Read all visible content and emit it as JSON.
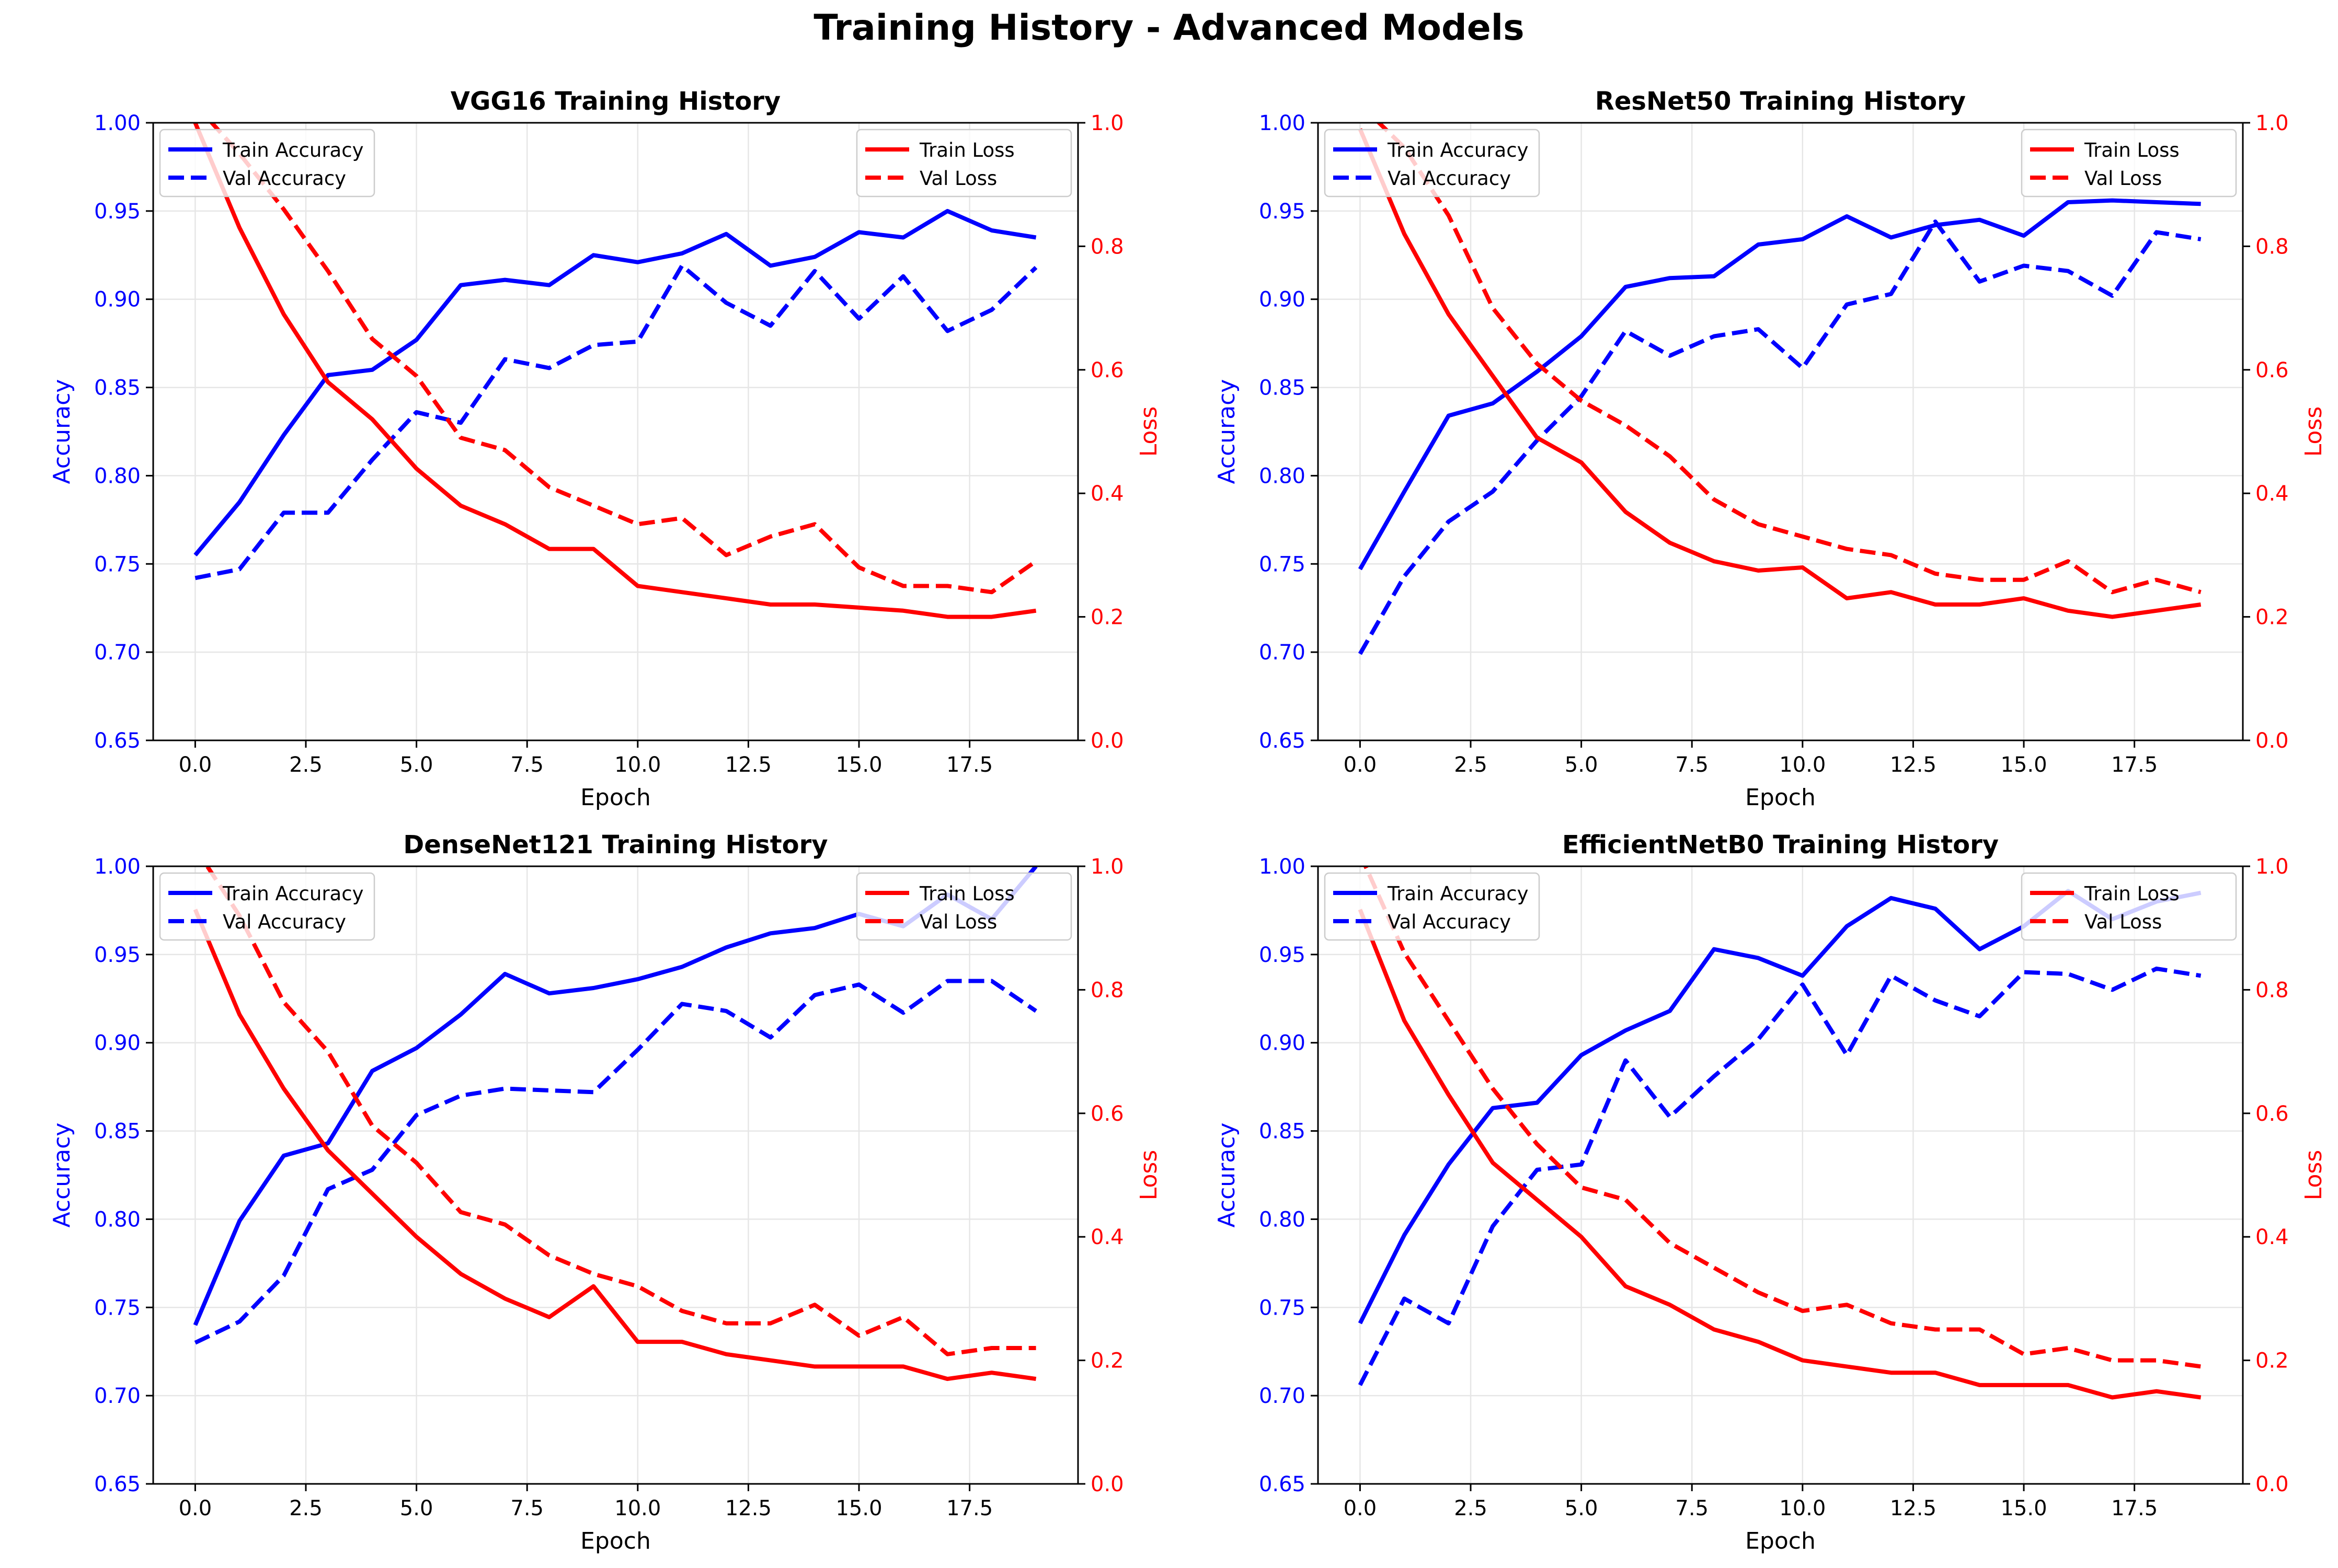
{
  "figure": {
    "suptitle": "Training History - Advanced Models",
    "colors": {
      "accuracy": "#0000ff",
      "loss": "#ff0000",
      "grid": "#e6e6e6",
      "axis": "#000000"
    }
  },
  "chart_data": [
    {
      "type": "line",
      "title": "VGG16 Training History",
      "xlabel": "Epoch",
      "ylabel": "Accuracy",
      "y2label": "Loss",
      "xlim": [
        -0.95,
        19.95
      ],
      "ylim": [
        0.65,
        1.0
      ],
      "y2lim": [
        0.0,
        1.0
      ],
      "xticks": [
        "0.0",
        "2.5",
        "5.0",
        "7.5",
        "10.0",
        "12.5",
        "15.0",
        "17.5"
      ],
      "yticks": [
        "0.65",
        "0.70",
        "0.75",
        "0.80",
        "0.85",
        "0.90",
        "0.95",
        "1.00"
      ],
      "y2ticks": [
        "0.0",
        "0.2",
        "0.4",
        "0.6",
        "0.8",
        "1.0"
      ],
      "grid": true,
      "legend_left": "upper-left",
      "legend_right": "upper-right",
      "x": [
        0,
        1,
        2,
        3,
        4,
        5,
        6,
        7,
        8,
        9,
        10,
        11,
        12,
        13,
        14,
        15,
        16,
        17,
        18,
        19
      ],
      "series": [
        {
          "name": "Train Accuracy",
          "axis": "left",
          "style": "solid",
          "color": "#0000ff",
          "values": [
            0.755,
            0.785,
            0.823,
            0.857,
            0.86,
            0.877,
            0.908,
            0.911,
            0.908,
            0.925,
            0.921,
            0.926,
            0.937,
            0.919,
            0.924,
            0.938,
            0.935,
            0.95,
            0.939,
            0.935
          ]
        },
        {
          "name": "Val Accuracy",
          "axis": "left",
          "style": "dashed",
          "color": "#0000ff",
          "values": [
            0.742,
            0.747,
            0.779,
            0.779,
            0.809,
            0.836,
            0.83,
            0.866,
            0.861,
            0.874,
            0.876,
            0.919,
            0.898,
            0.885,
            0.916,
            0.889,
            0.913,
            0.882,
            0.894,
            0.918
          ]
        },
        {
          "name": "Train Loss",
          "axis": "right",
          "style": "solid",
          "color": "#ff0000",
          "values": [
            1.0,
            0.83,
            0.69,
            0.58,
            0.52,
            0.44,
            0.38,
            0.35,
            0.31,
            0.31,
            0.25,
            0.24,
            0.23,
            0.22,
            0.22,
            0.215,
            0.21,
            0.2,
            0.2,
            0.21
          ]
        },
        {
          "name": "Val Loss",
          "axis": "right",
          "style": "dashed",
          "color": "#ff0000",
          "values": [
            1.03,
            0.95,
            0.86,
            0.76,
            0.65,
            0.59,
            0.49,
            0.47,
            0.41,
            0.38,
            0.35,
            0.36,
            0.3,
            0.33,
            0.35,
            0.28,
            0.25,
            0.25,
            0.24,
            0.29
          ]
        }
      ]
    },
    {
      "type": "line",
      "title": "ResNet50 Training History",
      "xlabel": "Epoch",
      "ylabel": "Accuracy",
      "y2label": "Loss",
      "xlim": [
        -0.95,
        19.95
      ],
      "ylim": [
        0.65,
        1.0
      ],
      "y2lim": [
        0.0,
        1.0
      ],
      "xticks": [
        "0.0",
        "2.5",
        "5.0",
        "7.5",
        "10.0",
        "12.5",
        "15.0",
        "17.5"
      ],
      "yticks": [
        "0.65",
        "0.70",
        "0.75",
        "0.80",
        "0.85",
        "0.90",
        "0.95",
        "1.00"
      ],
      "y2ticks": [
        "0.0",
        "0.2",
        "0.4",
        "0.6",
        "0.8",
        "1.0"
      ],
      "grid": true,
      "legend_left": "upper-left",
      "legend_right": "upper-right",
      "x": [
        0,
        1,
        2,
        3,
        4,
        5,
        6,
        7,
        8,
        9,
        10,
        11,
        12,
        13,
        14,
        15,
        16,
        17,
        18,
        19
      ],
      "series": [
        {
          "name": "Train Accuracy",
          "axis": "left",
          "style": "solid",
          "color": "#0000ff",
          "values": [
            0.747,
            0.791,
            0.834,
            0.841,
            0.859,
            0.879,
            0.907,
            0.912,
            0.913,
            0.931,
            0.934,
            0.947,
            0.935,
            0.942,
            0.945,
            0.936,
            0.955,
            0.956,
            0.955,
            0.954
          ]
        },
        {
          "name": "Val Accuracy",
          "axis": "left",
          "style": "dashed",
          "color": "#0000ff",
          "values": [
            0.699,
            0.743,
            0.774,
            0.791,
            0.82,
            0.845,
            0.882,
            0.868,
            0.879,
            0.883,
            0.861,
            0.897,
            0.903,
            0.944,
            0.91,
            0.919,
            0.916,
            0.902,
            0.938,
            0.934
          ]
        },
        {
          "name": "Train Loss",
          "axis": "right",
          "style": "solid",
          "color": "#ff0000",
          "values": [
            0.99,
            0.82,
            0.69,
            0.59,
            0.49,
            0.45,
            0.37,
            0.32,
            0.29,
            0.275,
            0.28,
            0.23,
            0.24,
            0.22,
            0.22,
            0.23,
            0.21,
            0.2,
            0.21,
            0.22
          ]
        },
        {
          "name": "Val Loss",
          "axis": "right",
          "style": "dashed",
          "color": "#ff0000",
          "values": [
            1.03,
            0.96,
            0.85,
            0.7,
            0.61,
            0.55,
            0.51,
            0.46,
            0.39,
            0.35,
            0.33,
            0.31,
            0.3,
            0.27,
            0.26,
            0.26,
            0.29,
            0.24,
            0.26,
            0.24
          ]
        }
      ]
    },
    {
      "type": "line",
      "title": "DenseNet121 Training History",
      "xlabel": "Epoch",
      "ylabel": "Accuracy",
      "y2label": "Loss",
      "xlim": [
        -0.95,
        19.95
      ],
      "ylim": [
        0.65,
        1.0
      ],
      "y2lim": [
        0.0,
        1.0
      ],
      "xticks": [
        "0.0",
        "2.5",
        "5.0",
        "7.5",
        "10.0",
        "12.5",
        "15.0",
        "17.5"
      ],
      "yticks": [
        "0.65",
        "0.70",
        "0.75",
        "0.80",
        "0.85",
        "0.90",
        "0.95",
        "1.00"
      ],
      "y2ticks": [
        "0.0",
        "0.2",
        "0.4",
        "0.6",
        "0.8",
        "1.0"
      ],
      "grid": true,
      "legend_left": "upper-left",
      "legend_right": "upper-right",
      "x": [
        0,
        1,
        2,
        3,
        4,
        5,
        6,
        7,
        8,
        9,
        10,
        11,
        12,
        13,
        14,
        15,
        16,
        17,
        18,
        19
      ],
      "series": [
        {
          "name": "Train Accuracy",
          "axis": "left",
          "style": "solid",
          "color": "#0000ff",
          "values": [
            0.74,
            0.799,
            0.836,
            0.843,
            0.884,
            0.897,
            0.916,
            0.939,
            0.928,
            0.931,
            0.936,
            0.943,
            0.954,
            0.962,
            0.965,
            0.973,
            0.966,
            0.984,
            0.97,
            1.0
          ]
        },
        {
          "name": "Val Accuracy",
          "axis": "left",
          "style": "dashed",
          "color": "#0000ff",
          "values": [
            0.73,
            0.742,
            0.768,
            0.817,
            0.828,
            0.859,
            0.87,
            0.874,
            0.873,
            0.872,
            0.896,
            0.922,
            0.918,
            0.903,
            0.927,
            0.933,
            0.917,
            0.935,
            0.935,
            0.918
          ]
        },
        {
          "name": "Train Loss",
          "axis": "right",
          "style": "solid",
          "color": "#ff0000",
          "values": [
            0.93,
            0.76,
            0.64,
            0.54,
            0.47,
            0.4,
            0.34,
            0.3,
            0.27,
            0.32,
            0.23,
            0.23,
            0.21,
            0.2,
            0.19,
            0.19,
            0.19,
            0.17,
            0.18,
            0.17
          ]
        },
        {
          "name": "Val Loss",
          "axis": "right",
          "style": "dashed",
          "color": "#ff0000",
          "values": [
            1.03,
            0.92,
            0.78,
            0.7,
            0.58,
            0.52,
            0.44,
            0.42,
            0.37,
            0.34,
            0.32,
            0.28,
            0.26,
            0.26,
            0.29,
            0.24,
            0.27,
            0.21,
            0.22,
            0.22
          ]
        }
      ]
    },
    {
      "type": "line",
      "title": "EfficientNetB0 Training History",
      "xlabel": "Epoch",
      "ylabel": "Accuracy",
      "y2label": "Loss",
      "xlim": [
        -0.95,
        19.95
      ],
      "ylim": [
        0.65,
        1.0
      ],
      "y2lim": [
        0.0,
        1.0
      ],
      "xticks": [
        "0.0",
        "2.5",
        "5.0",
        "7.5",
        "10.0",
        "12.5",
        "15.0",
        "17.5"
      ],
      "yticks": [
        "0.65",
        "0.70",
        "0.75",
        "0.80",
        "0.85",
        "0.90",
        "0.95",
        "1.00"
      ],
      "y2ticks": [
        "0.0",
        "0.2",
        "0.4",
        "0.6",
        "0.8",
        "1.0"
      ],
      "grid": true,
      "legend_left": "upper-left",
      "legend_right": "upper-right",
      "x": [
        0,
        1,
        2,
        3,
        4,
        5,
        6,
        7,
        8,
        9,
        10,
        11,
        12,
        13,
        14,
        15,
        16,
        17,
        18,
        19
      ],
      "series": [
        {
          "name": "Train Accuracy",
          "axis": "left",
          "style": "solid",
          "color": "#0000ff",
          "values": [
            0.741,
            0.791,
            0.831,
            0.863,
            0.866,
            0.893,
            0.907,
            0.918,
            0.953,
            0.948,
            0.938,
            0.966,
            0.982,
            0.976,
            0.953,
            0.966,
            0.986,
            0.97,
            0.98,
            0.985
          ]
        },
        {
          "name": "Val Accuracy",
          "axis": "left",
          "style": "dashed",
          "color": "#0000ff",
          "values": [
            0.706,
            0.755,
            0.741,
            0.796,
            0.828,
            0.831,
            0.89,
            0.858,
            0.881,
            0.902,
            0.933,
            0.893,
            0.938,
            0.924,
            0.915,
            0.94,
            0.939,
            0.93,
            0.942,
            0.938
          ]
        },
        {
          "name": "Train Loss",
          "axis": "right",
          "style": "solid",
          "color": "#ff0000",
          "values": [
            0.93,
            0.75,
            0.63,
            0.52,
            0.46,
            0.4,
            0.32,
            0.29,
            0.25,
            0.23,
            0.2,
            0.19,
            0.18,
            0.18,
            0.16,
            0.16,
            0.16,
            0.14,
            0.15,
            0.14
          ]
        },
        {
          "name": "Val Loss",
          "axis": "right",
          "style": "dashed",
          "color": "#ff0000",
          "values": [
            1.02,
            0.86,
            0.75,
            0.64,
            0.55,
            0.48,
            0.46,
            0.39,
            0.35,
            0.31,
            0.28,
            0.29,
            0.26,
            0.25,
            0.25,
            0.21,
            0.22,
            0.2,
            0.2,
            0.19
          ]
        }
      ]
    }
  ]
}
